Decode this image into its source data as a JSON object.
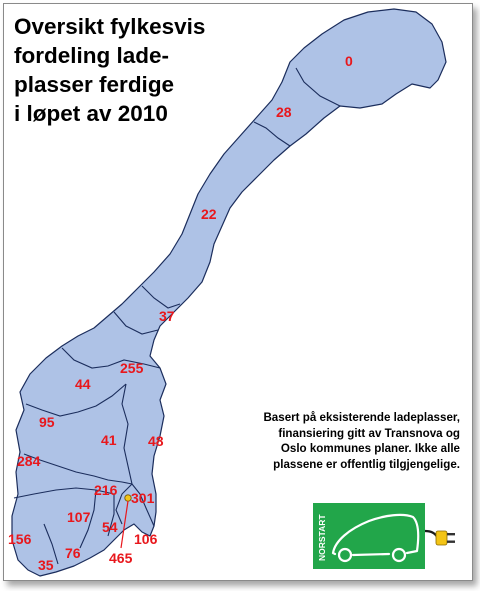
{
  "title_lines": [
    "Oversikt fylkesvis",
    "fordeling lade-",
    "plasser ferdige",
    "i løpet av 2010"
  ],
  "info_lines": [
    "Basert på eksisterende ladeplasser,",
    "finansiering gitt av Transnova og",
    "Oslo kommunes planer. Ikke alle",
    "plassene er offentlig tilgjengelige."
  ],
  "logo_text": "NORSTART",
  "colors": {
    "land": "#aec2e6",
    "border": "#1b2d5c",
    "number": "#e8171c",
    "logo_green": "#22a64a",
    "plug": "#f3c416"
  },
  "counties": [
    {
      "id": "finnmark",
      "value": "0"
    },
    {
      "id": "troms",
      "value": "28"
    },
    {
      "id": "nordland",
      "value": "22"
    },
    {
      "id": "nord-trondelag",
      "value": "37"
    },
    {
      "id": "sor-trondelag",
      "value": "255"
    },
    {
      "id": "more-og-romsdal",
      "value": "44"
    },
    {
      "id": "sogn-og-fjordane",
      "value": "95"
    },
    {
      "id": "oppland",
      "value": "41"
    },
    {
      "id": "hedmark",
      "value": "48"
    },
    {
      "id": "hordaland",
      "value": "284"
    },
    {
      "id": "akershus",
      "value": "216"
    },
    {
      "id": "oslo",
      "value": "301"
    },
    {
      "id": "buskerud",
      "value": "107"
    },
    {
      "id": "vestfold",
      "value": "54"
    },
    {
      "id": "ostfold",
      "value": "106"
    },
    {
      "id": "rogaland",
      "value": "156"
    },
    {
      "id": "telemark",
      "value": "76"
    },
    {
      "id": "aust-agder",
      "value": "465"
    },
    {
      "id": "vest-agder",
      "value": "35"
    }
  ]
}
